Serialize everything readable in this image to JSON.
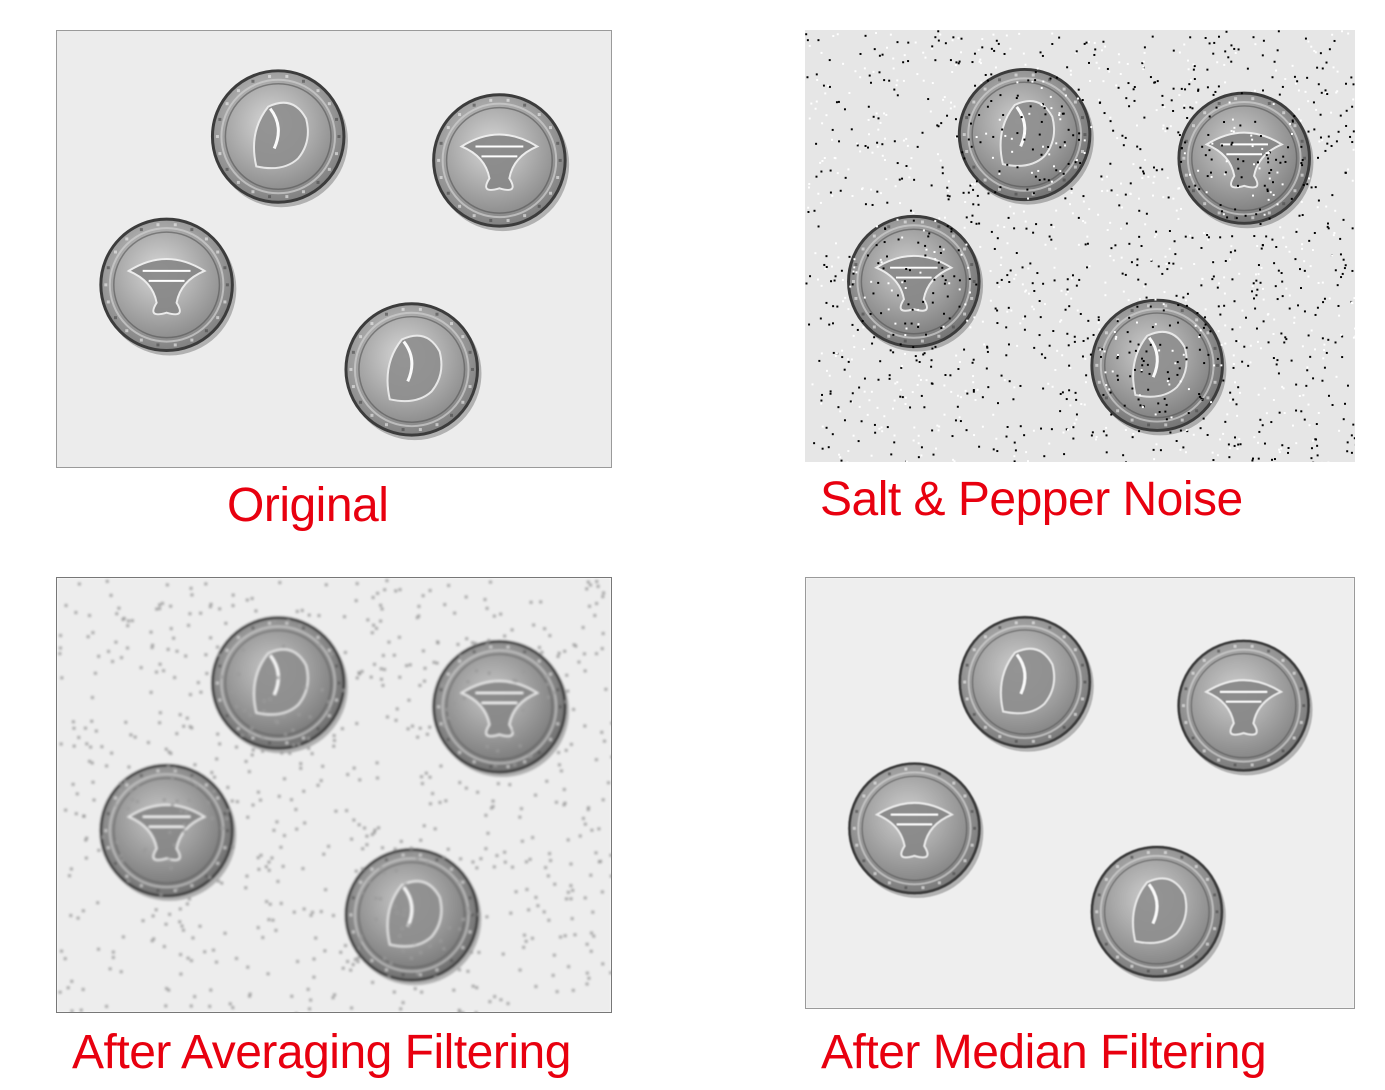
{
  "colors": {
    "caption": "#e8000f",
    "background": "#ffffff"
  },
  "panels": [
    {
      "id": "original",
      "caption": "Original"
    },
    {
      "id": "noise",
      "caption": "Salt & Pepper Noise"
    },
    {
      "id": "average",
      "caption": "After Averaging Filtering"
    },
    {
      "id": "median",
      "caption": "After Median Filtering"
    }
  ]
}
